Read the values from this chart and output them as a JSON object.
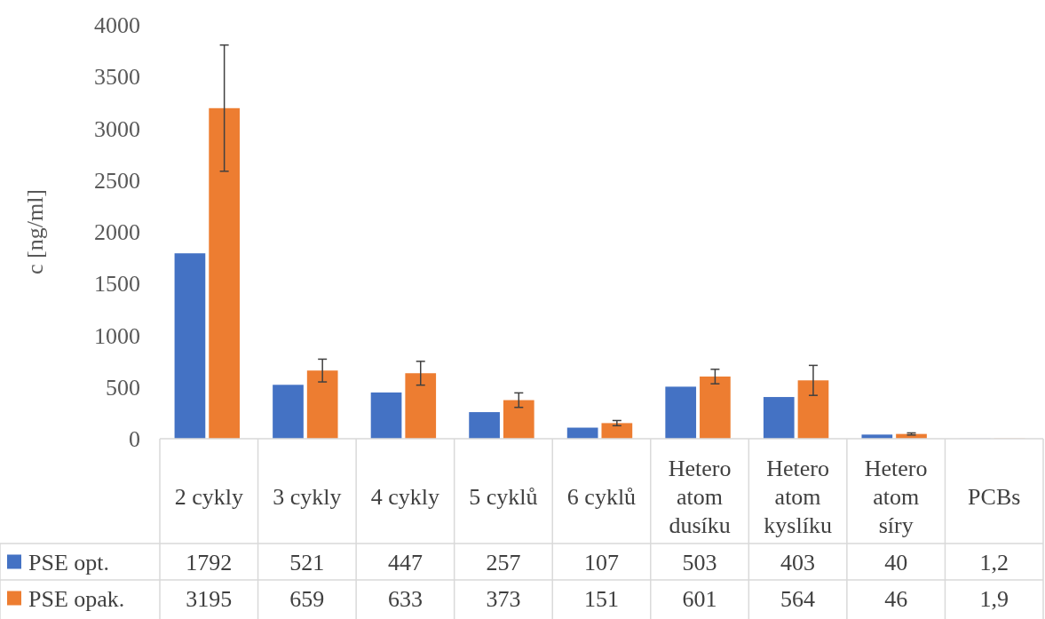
{
  "chart_data": {
    "type": "bar",
    "ylabel": "c [ng/ml]",
    "categories": [
      "2 cykly",
      "3 cykly",
      "4 cykly",
      "5 cyklů",
      "6 cyklů",
      "Hetero atom dusíku",
      "Hetero atom kyslíku",
      "Hetero atom síry",
      "PCBs"
    ],
    "series": [
      {
        "name": "PSE opt.",
        "color": "#4472c4",
        "values": [
          1792,
          521,
          447,
          257,
          107,
          503,
          403,
          40,
          1.2
        ],
        "value_labels": [
          "1792",
          "521",
          "447",
          "257",
          "107",
          "503",
          "403",
          "40",
          "1,2"
        ]
      },
      {
        "name": "PSE opak.",
        "color": "#ed7d31",
        "values": [
          3195,
          659,
          633,
          373,
          151,
          601,
          564,
          46,
          1.9
        ],
        "value_labels": [
          "3195",
          "659",
          "633",
          "373",
          "151",
          "601",
          "564",
          "46",
          "1,9"
        ],
        "errors": [
          610,
          110,
          115,
          70,
          25,
          70,
          145,
          10,
          null
        ]
      }
    ],
    "ylim": [
      0,
      4000
    ],
    "yticks": [
      0,
      500,
      1000,
      1500,
      2000,
      2500,
      3000,
      3500,
      4000
    ],
    "legend": "bottom"
  }
}
